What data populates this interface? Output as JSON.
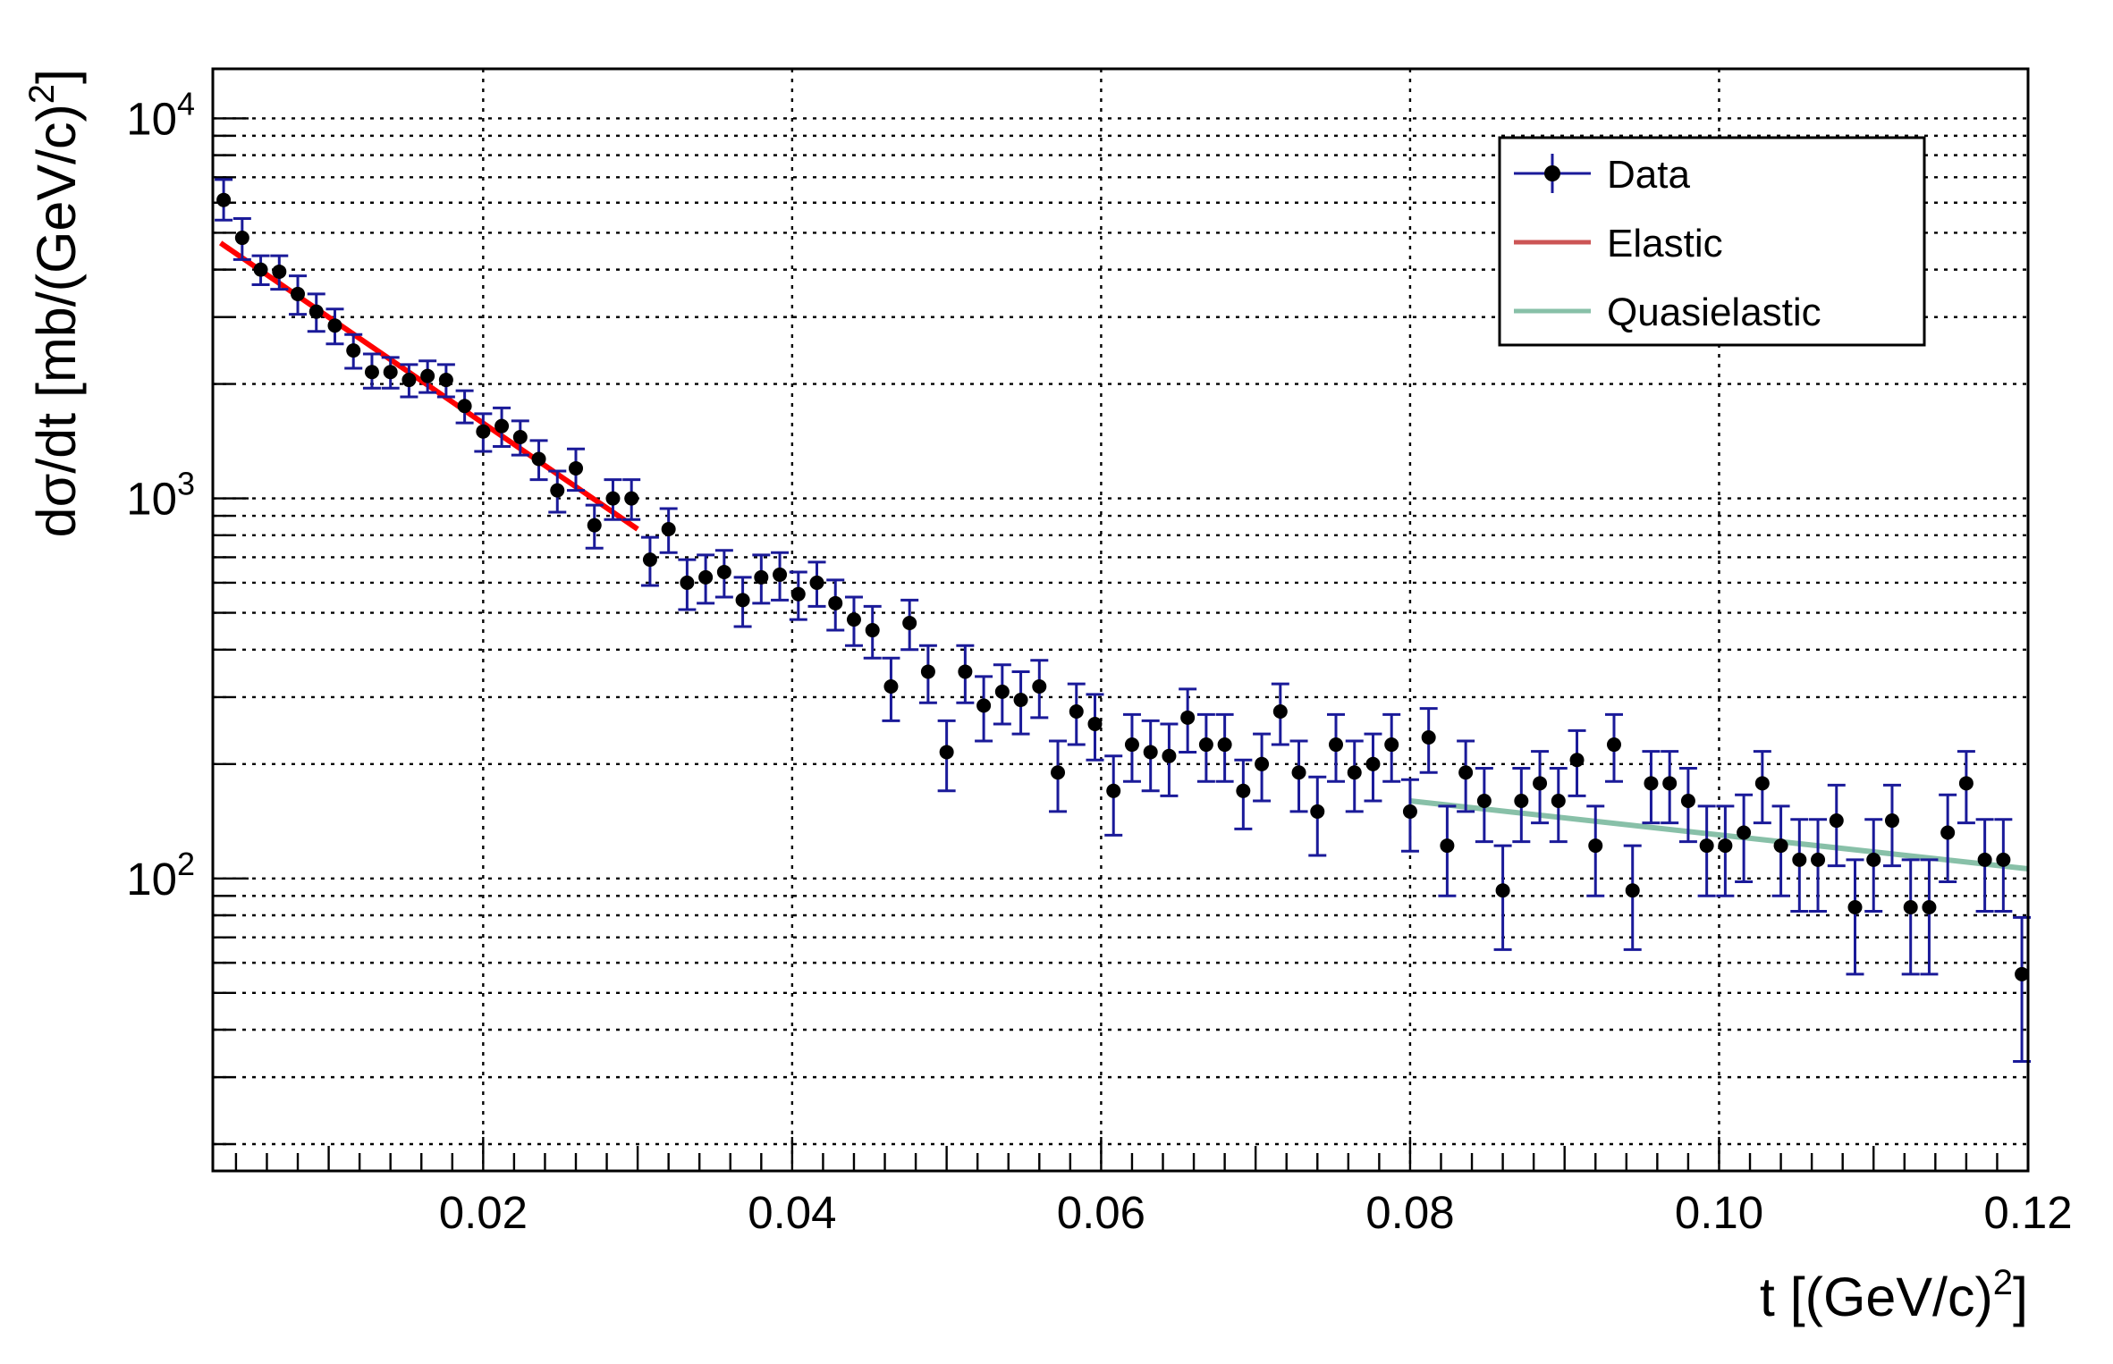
{
  "chart_data": {
    "type": "scatter",
    "title": "",
    "xlabel": {
      "base": "t [(GeV/c)",
      "sup": "2",
      "end": "]"
    },
    "ylabel": {
      "base": "dσ/dt [mb/(GeV/c)",
      "sup": "2",
      "end": "]"
    },
    "xlim": [
      0.0025,
      0.12
    ],
    "ylim": [
      17,
      13500
    ],
    "yscale": "log",
    "grid": true,
    "legend_position": "top-right",
    "x_tick_labels": [
      "0.02",
      "0.04",
      "0.06",
      "0.08",
      "0.10",
      "0.12"
    ],
    "y_tick_labels": [
      {
        "base": "10",
        "exp": "2",
        "value": 100
      },
      {
        "base": "10",
        "exp": "3",
        "value": 1000
      },
      {
        "base": "10",
        "exp": "4",
        "value": 10000
      }
    ],
    "legend": [
      {
        "label": "Data",
        "kind": "marker"
      },
      {
        "label": "Elastic",
        "kind": "line",
        "color": "#cc5555"
      },
      {
        "label": "Quasielastic",
        "kind": "line",
        "color": "#88c0a8"
      }
    ],
    "colors": {
      "data_marker": "#000000",
      "error_bar": "#1a1a99",
      "elastic_fit": "#ff0000",
      "quasielastic_fit": "#88c0a8"
    },
    "series": [
      {
        "name": "Data",
        "points": [
          [
            0.0032,
            6100,
            5400,
            6900
          ],
          [
            0.0044,
            4850,
            4250,
            5450
          ],
          [
            0.0056,
            4000,
            3650,
            4350
          ],
          [
            0.0068,
            3950,
            3550,
            4350
          ],
          [
            0.008,
            3450,
            3050,
            3850
          ],
          [
            0.0092,
            3100,
            2750,
            3450
          ],
          [
            0.0104,
            2850,
            2550,
            3150
          ],
          [
            0.0116,
            2450,
            2200,
            2700
          ],
          [
            0.0128,
            2150,
            1950,
            2400
          ],
          [
            0.014,
            2150,
            1950,
            2350
          ],
          [
            0.0152,
            2050,
            1850,
            2250
          ],
          [
            0.0164,
            2100,
            1900,
            2300
          ],
          [
            0.0176,
            2050,
            1850,
            2250
          ],
          [
            0.0188,
            1750,
            1580,
            1920
          ],
          [
            0.02,
            1500,
            1330,
            1670
          ],
          [
            0.0212,
            1550,
            1370,
            1730
          ],
          [
            0.0224,
            1450,
            1300,
            1600
          ],
          [
            0.0236,
            1270,
            1120,
            1420
          ],
          [
            0.0248,
            1050,
            920,
            1180
          ],
          [
            0.026,
            1200,
            1050,
            1350
          ],
          [
            0.0272,
            850,
            740,
            960
          ],
          [
            0.0284,
            1000,
            880,
            1120
          ],
          [
            0.0296,
            1000,
            880,
            1120
          ],
          [
            0.0308,
            690,
            590,
            790
          ],
          [
            0.032,
            830,
            720,
            940
          ],
          [
            0.0332,
            600,
            510,
            690
          ],
          [
            0.0344,
            620,
            530,
            710
          ],
          [
            0.0356,
            640,
            550,
            730
          ],
          [
            0.0368,
            540,
            460,
            620
          ],
          [
            0.038,
            620,
            530,
            710
          ],
          [
            0.0392,
            630,
            540,
            720
          ],
          [
            0.0404,
            560,
            480,
            640
          ],
          [
            0.0416,
            600,
            520,
            680
          ],
          [
            0.0428,
            530,
            450,
            610
          ],
          [
            0.044,
            480,
            410,
            550
          ],
          [
            0.0452,
            450,
            380,
            520
          ],
          [
            0.0464,
            320,
            260,
            380
          ],
          [
            0.0476,
            470,
            400,
            540
          ],
          [
            0.0488,
            350,
            290,
            410
          ],
          [
            0.05,
            215,
            170,
            260
          ],
          [
            0.0512,
            350,
            290,
            410
          ],
          [
            0.0524,
            285,
            230,
            340
          ],
          [
            0.0536,
            310,
            255,
            365
          ],
          [
            0.0548,
            295,
            240,
            350
          ],
          [
            0.056,
            320,
            265,
            375
          ],
          [
            0.0572,
            190,
            150,
            230
          ],
          [
            0.0584,
            275,
            225,
            325
          ],
          [
            0.0596,
            255,
            205,
            305
          ],
          [
            0.0608,
            170,
            130,
            210
          ],
          [
            0.062,
            225,
            180,
            270
          ],
          [
            0.0632,
            215,
            170,
            260
          ],
          [
            0.0644,
            210,
            165,
            255
          ],
          [
            0.0656,
            265,
            215,
            315
          ],
          [
            0.0668,
            225,
            180,
            270
          ],
          [
            0.068,
            225,
            180,
            270
          ],
          [
            0.0692,
            170,
            135,
            205
          ],
          [
            0.0704,
            200,
            160,
            240
          ],
          [
            0.0716,
            275,
            225,
            325
          ],
          [
            0.0728,
            190,
            150,
            230
          ],
          [
            0.074,
            150,
            115,
            185
          ],
          [
            0.0752,
            225,
            180,
            270
          ],
          [
            0.0764,
            190,
            150,
            230
          ],
          [
            0.0776,
            200,
            160,
            240
          ],
          [
            0.0788,
            225,
            180,
            270
          ],
          [
            0.08,
            150,
            118,
            182
          ],
          [
            0.0812,
            235,
            190,
            280
          ],
          [
            0.0824,
            122,
            90,
            155
          ],
          [
            0.0836,
            190,
            150,
            230
          ],
          [
            0.0848,
            160,
            125,
            195
          ],
          [
            0.086,
            93,
            65,
            122
          ],
          [
            0.0872,
            160,
            125,
            195
          ],
          [
            0.0884,
            178,
            140,
            216
          ],
          [
            0.0896,
            160,
            125,
            195
          ],
          [
            0.0908,
            205,
            165,
            245
          ],
          [
            0.092,
            122,
            90,
            155
          ],
          [
            0.0932,
            225,
            180,
            270
          ],
          [
            0.0944,
            93,
            65,
            122
          ],
          [
            0.0956,
            178,
            140,
            216
          ],
          [
            0.0968,
            178,
            140,
            216
          ],
          [
            0.098,
            160,
            125,
            195
          ],
          [
            0.0992,
            122,
            90,
            155
          ],
          [
            0.1004,
            122,
            90,
            155
          ],
          [
            0.1016,
            132,
            98,
            166
          ],
          [
            0.1028,
            178,
            140,
            216
          ],
          [
            0.104,
            122,
            90,
            155
          ],
          [
            0.1052,
            112,
            82,
            143
          ],
          [
            0.1064,
            112,
            82,
            143
          ],
          [
            0.1076,
            142,
            108,
            176
          ],
          [
            0.1088,
            84,
            56,
            112
          ],
          [
            0.11,
            112,
            82,
            143
          ],
          [
            0.1112,
            142,
            108,
            176
          ],
          [
            0.1124,
            84,
            56,
            112
          ],
          [
            0.1136,
            84,
            56,
            112
          ],
          [
            0.1148,
            132,
            98,
            166
          ],
          [
            0.116,
            178,
            140,
            216
          ],
          [
            0.1172,
            112,
            82,
            143
          ],
          [
            0.1184,
            112,
            82,
            143
          ],
          [
            0.1196,
            56,
            33,
            79
          ]
        ]
      },
      {
        "name": "Elastic",
        "line": [
          [
            0.003,
            4700
          ],
          [
            0.03,
            830
          ]
        ]
      },
      {
        "name": "Quasielastic",
        "line": [
          [
            0.08,
            160
          ],
          [
            0.12,
            106
          ]
        ]
      }
    ]
  }
}
